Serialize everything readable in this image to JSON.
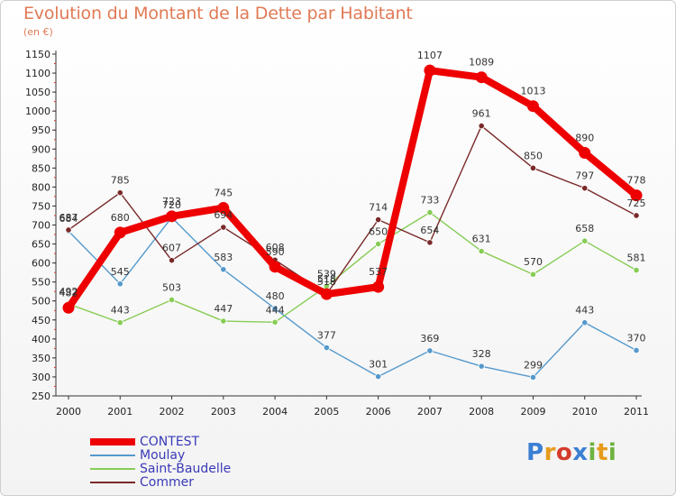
{
  "header": {
    "title": "Evolution du Montant de la Dette par Habitant",
    "subtitle": "(en €)"
  },
  "brand": {
    "text": "Proxiti"
  },
  "chart_data": {
    "type": "line",
    "title": "Evolution du Montant de la Dette par Habitant",
    "ylabel": "(en €)",
    "xlabel": "",
    "ylim": [
      250,
      1150
    ],
    "yticks": [
      250,
      300,
      350,
      400,
      450,
      500,
      550,
      600,
      650,
      700,
      750,
      800,
      850,
      900,
      950,
      1000,
      1050,
      1100,
      1150
    ],
    "categories": [
      "2000",
      "2001",
      "2002",
      "2003",
      "2004",
      "2005",
      "2006",
      "2007",
      "2008",
      "2009",
      "2010",
      "2011"
    ],
    "grid": false,
    "legend_position": "bottom-left",
    "series": [
      {
        "name": "CONTEST",
        "color": "#ee0000",
        "values": [
          482,
          680,
          723,
          745,
          590,
          518,
          537,
          1107,
          1089,
          1013,
          890,
          778
        ],
        "labels": [
          "482",
          "680",
          "723",
          "745",
          "590",
          "518",
          "537",
          "1107",
          "1089",
          "1013",
          "890",
          "778"
        ]
      },
      {
        "name": "Moulay",
        "color": "#5599cc",
        "values": [
          684,
          545,
          720,
          583,
          480,
          377,
          301,
          369,
          328,
          299,
          443,
          370
        ],
        "labels": [
          "684",
          "545",
          "720",
          "583",
          "480",
          "377",
          "301",
          "369",
          "328",
          "299",
          "443",
          "370"
        ]
      },
      {
        "name": "Saint-Baudelle",
        "color": "#88cc55",
        "values": [
          492,
          443,
          503,
          447,
          444,
          539,
          650,
          733,
          631,
          570,
          658,
          581
        ],
        "labels": [
          "492",
          "443",
          "503",
          "447",
          "444",
          "539",
          "650",
          "733",
          "631",
          "570",
          "658",
          "581"
        ]
      },
      {
        "name": "Commer",
        "color": "#7a2a2a",
        "values": [
          687,
          785,
          607,
          694,
          608,
          518,
          714,
          654,
          961,
          850,
          797,
          725
        ],
        "labels": [
          "687",
          "785",
          "607",
          "694",
          "608",
          "518",
          "714",
          "654",
          "961",
          "850",
          "797",
          "725"
        ]
      }
    ]
  }
}
